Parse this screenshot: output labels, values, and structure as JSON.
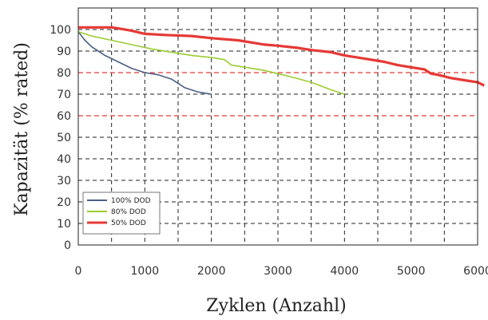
{
  "chart_data": {
    "type": "line",
    "xlabel": "Zyklen (Anzahl)",
    "ylabel": "Kapazität (% rated)",
    "xlim": [
      0,
      6000
    ],
    "ylim": [
      0,
      110
    ],
    "xticks": [
      0,
      1000,
      2000,
      3000,
      4000,
      5000,
      6000
    ],
    "yticks": [
      0,
      10,
      20,
      30,
      40,
      50,
      60,
      70,
      80,
      90,
      100
    ],
    "grid": true,
    "reference_lines": [
      80,
      60
    ],
    "reference_color": "#e53935",
    "legend_position": "bottom-left",
    "series": [
      {
        "name": "100% DOD",
        "color": "#4a5f86",
        "x": [
          0,
          100,
          200,
          400,
          600,
          800,
          1000,
          1200,
          1400,
          1550,
          1600,
          1700,
          1800,
          1900,
          2000
        ],
        "y": [
          99,
          95,
          92,
          88,
          85,
          82,
          80,
          79,
          77,
          74,
          73,
          72,
          71,
          70.5,
          70
        ]
      },
      {
        "name": "80% DOD",
        "color": "#9acd32",
        "x": [
          0,
          200,
          500,
          800,
          1100,
          1400,
          1700,
          2000,
          2200,
          2300,
          2400,
          2600,
          2800,
          3000,
          3200,
          3500,
          3800,
          4000
        ],
        "y": [
          99,
          97,
          95,
          93,
          91,
          89.5,
          88,
          87,
          86,
          83.5,
          83,
          82,
          81,
          79.5,
          78,
          75.5,
          72,
          70
        ]
      },
      {
        "name": "50% DOD",
        "color": "#e53935",
        "x": [
          0,
          500,
          600,
          800,
          1000,
          1300,
          1700,
          2000,
          2400,
          2800,
          3000,
          3300,
          3500,
          3800,
          4000,
          4300,
          4600,
          4800,
          5000,
          5200,
          5300,
          5400,
          5600,
          5800,
          6000,
          6100
        ],
        "y": [
          101,
          101,
          100.5,
          99.5,
          98,
          97.5,
          97,
          96,
          95,
          93,
          92.5,
          91.5,
          90.5,
          89.5,
          88,
          86.5,
          85,
          83.5,
          82.5,
          81.5,
          79.5,
          79,
          77.5,
          76.5,
          75.5,
          74
        ]
      }
    ]
  }
}
